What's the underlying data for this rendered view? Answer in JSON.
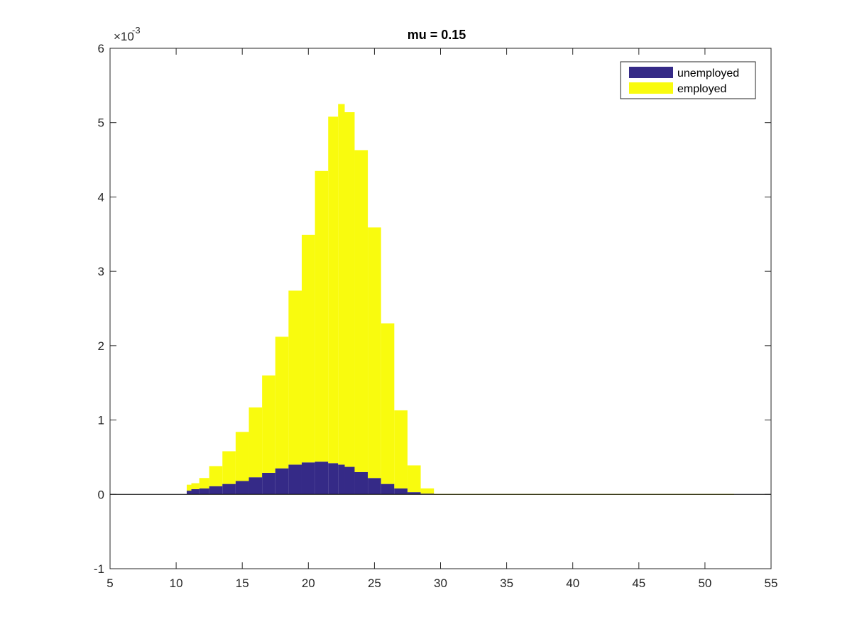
{
  "chart_data": {
    "type": "bar",
    "stacked": true,
    "title": "mu = 0.15",
    "xlabel": "",
    "ylabel": "",
    "xlim": [
      5,
      55
    ],
    "ylim": [
      -0.001,
      0.006
    ],
    "y_exponent_label": "×10",
    "y_exponent_power": "-3",
    "xticks": [
      "5",
      "10",
      "15",
      "20",
      "25",
      "30",
      "35",
      "40",
      "45",
      "50",
      "55"
    ],
    "yticks": [
      "-1",
      "0",
      "1",
      "2",
      "3",
      "4",
      "5",
      "6"
    ],
    "ytick_values": [
      -0.001,
      0,
      0.001,
      0.002,
      0.003,
      0.004,
      0.005,
      0.006
    ],
    "xtick_values": [
      5,
      10,
      15,
      20,
      25,
      30,
      35,
      40,
      45,
      50,
      55
    ],
    "grid": false,
    "legend_position": "top-right",
    "x": [
      10.8,
      11.5,
      12,
      13,
      14,
      15,
      16,
      17,
      18,
      19,
      20,
      21,
      22,
      22.5,
      23,
      24,
      25,
      26,
      27,
      28,
      29,
      30,
      35,
      40,
      45,
      52
    ],
    "series": [
      {
        "name": "unemployed",
        "color": "#352a87",
        "values": [
          5e-05,
          7e-05,
          8e-05,
          0.00011,
          0.00014,
          0.00018,
          0.00023,
          0.00029,
          0.00035,
          0.0004,
          0.00043,
          0.00044,
          0.00042,
          0.0004,
          0.00037,
          0.0003,
          0.00022,
          0.00014,
          8e-05,
          3e-05,
          1e-05,
          0,
          0,
          0,
          0,
          0
        ]
      },
      {
        "name": "employed",
        "color": "#f9fb0e",
        "values": [
          8e-05,
          8e-05,
          0.00014,
          0.00027,
          0.00044,
          0.00066,
          0.00094,
          0.00131,
          0.00177,
          0.00234,
          0.00306,
          0.00391,
          0.00466,
          0.00485,
          0.00477,
          0.00433,
          0.00337,
          0.00216,
          0.00105,
          0.00036,
          7e-05,
          5e-06,
          5e-06,
          5e-06,
          5e-06,
          5e-06
        ]
      }
    ]
  }
}
